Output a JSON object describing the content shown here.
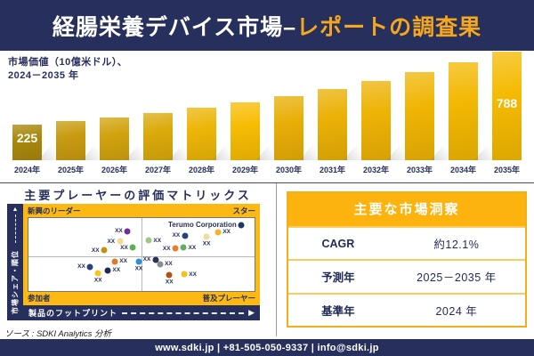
{
  "header": {
    "title_primary": "経腸栄養デバイス市場–",
    "title_accent": "レポートの調査果"
  },
  "chart_label": {
    "line1": "市場価値（10億米ドル）、",
    "line2": "2024－2035 年"
  },
  "chart_data": [
    {
      "type": "bar",
      "title": "市場価値（10億米ドル）、2024－2035 年",
      "categories": [
        "2024年",
        "2025年",
        "2026年",
        "2027年",
        "2028年",
        "2029年",
        "2030年",
        "2031年",
        "2032年",
        "2033年",
        "2034年",
        "2035年"
      ],
      "values": [
        225,
        252,
        283,
        317,
        355,
        398,
        447,
        501,
        561,
        629,
        705,
        788
      ],
      "labeled_values": {
        "2024年": "225",
        "2035年": "788"
      },
      "bar_colors": [
        "#A9880D",
        "#C89B10",
        "#D2A30F",
        "#DBAA0B",
        "#EDB607",
        "#F7BD04",
        "#E9AF07",
        "#EBB106",
        "#EEB305",
        "#F0B504",
        "#F3B803",
        "#F5BA02"
      ],
      "ylim": [
        0,
        800
      ],
      "grid": false,
      "legend": false
    },
    {
      "type": "scatter",
      "title": "主要プレーヤーの評価マトリックス",
      "xlabel": "製品のフットプリント",
      "ylabel": "市場シェア・順位",
      "x_range": [
        0,
        100
      ],
      "y_range": [
        0,
        100
      ],
      "quadrant_labels": {
        "top_left": "新興のリーダー",
        "top_right": "スター",
        "bottom_left": "参加者",
        "bottom_right": "普及プレーヤー"
      },
      "points": [
        {
          "x": 43.8,
          "y": 82.1,
          "color": "#6E2F9E",
          "label": "XX",
          "label_pos": "left"
        },
        {
          "x": 40.4,
          "y": 67.9,
          "color": "#EFDC95",
          "label": "XX",
          "label_pos": "left"
        },
        {
          "x": 53.1,
          "y": 69.0,
          "color": "#A3C585",
          "label": "XX",
          "label_pos": "right"
        },
        {
          "x": 46.2,
          "y": 59.5,
          "color": "#5FAE4E",
          "label": "XX",
          "label_pos": "left"
        },
        {
          "x": 33.5,
          "y": 56.0,
          "color": "#BC9412",
          "label": "XX",
          "label_pos": "left"
        },
        {
          "x": 94.2,
          "y": 90.5,
          "color": "#1F3864",
          "label": "Terumo Corporation",
          "label_pos": "left"
        },
        {
          "x": 69.2,
          "y": 76.2,
          "color": "#27437F",
          "label": "XX",
          "label_pos": "left"
        },
        {
          "x": 83.8,
          "y": 81.0,
          "color": "#F2B42B",
          "label": "XX",
          "label_pos": "right"
        },
        {
          "x": 78.8,
          "y": 75.0,
          "color": "#F0DD9A",
          "label": "XX",
          "label_pos": "below"
        },
        {
          "x": 65.0,
          "y": 58.3,
          "color": "#E57E2D",
          "label": "XX",
          "label_pos": "left"
        },
        {
          "x": 68.5,
          "y": 59.5,
          "color": "#67AD5B",
          "label": "XX",
          "label_pos": "right"
        },
        {
          "x": 38.1,
          "y": 40.5,
          "color": "#E2772F",
          "label": "XX",
          "label_pos": "right"
        },
        {
          "x": 48.8,
          "y": 40.5,
          "color": "#2D8FD5",
          "label": "XX",
          "label_pos": "below"
        },
        {
          "x": 27.3,
          "y": 33.3,
          "color": "#27437F",
          "label": "XX",
          "label_pos": "left"
        },
        {
          "x": 35.0,
          "y": 28.6,
          "color": "#1F2A50",
          "label": "XX",
          "label_pos": "right"
        },
        {
          "x": 30.8,
          "y": 25.0,
          "color": "#F5C518",
          "label": "XX",
          "label_pos": "below"
        },
        {
          "x": 56.2,
          "y": 42.9,
          "color": "#273455",
          "label": "XX",
          "label_pos": "left"
        },
        {
          "x": 58.1,
          "y": 36.9,
          "color": "#8C8C8C",
          "label": "XX",
          "label_pos": "right"
        },
        {
          "x": 62.3,
          "y": 21.4,
          "color": "#B35311",
          "label": "XX",
          "label_pos": "below"
        },
        {
          "x": 68.8,
          "y": 22.6,
          "color": "#F2C218",
          "label": "XX",
          "label_pos": "right"
        }
      ]
    },
    {
      "type": "table",
      "title": "主要な市場洞察",
      "rows": [
        [
          "CAGR",
          "約12.1%"
        ],
        [
          "予測年",
          "2025－2035 年"
        ],
        [
          "基準年",
          "2024 年"
        ]
      ]
    }
  ],
  "matrix": {
    "title": "主要プレーヤーの評価マトリックス",
    "x_axis_label": "製品のフットプリント",
    "y_axis_label": "市場シェア・順位",
    "quad_top_left": "新興のリーダー",
    "quad_top_right": "スター",
    "quad_bottom_left": "参加者",
    "quad_bottom_right": "普及プレーヤー"
  },
  "insights": {
    "title": "主要な市場洞察",
    "rows": [
      {
        "label": "CAGR",
        "value": "約12.1%"
      },
      {
        "label": "予測年",
        "value": "2025－2035 年"
      },
      {
        "label": "基準年",
        "value": "2024 年"
      }
    ]
  },
  "source": "ソース : SDKI Analytics 分析",
  "footer": {
    "text": "www.sdki.jp | +81-505-050-9337 | info@sdki.jp"
  },
  "colors": {
    "navy": "#272F5C",
    "accent_gold": "#FCB813",
    "title_accent_orange": "#F5A81C",
    "text_navy": "#1F2A56"
  }
}
